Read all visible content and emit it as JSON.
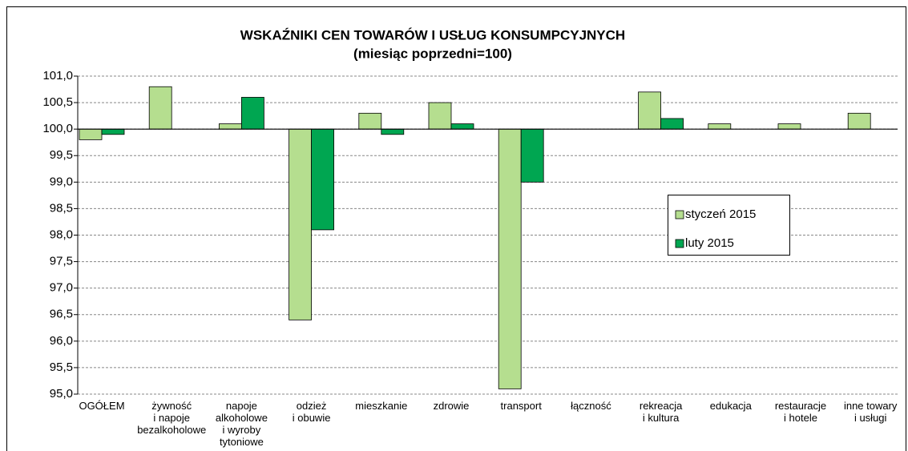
{
  "chart_data": {
    "type": "bar",
    "title": "WSKAŹNIKI CEN TOWARÓW I USŁUG KONSUMPCYJNYCH",
    "subtitle": "(miesiąc poprzedni=100)",
    "categories": [
      "OGÓŁEM",
      "żywność\ni napoje\nbezalkoholowe",
      "napoje\nalkoholowe\ni wyroby\ntytoniowe",
      "odzież\ni obuwie",
      "mieszkanie",
      "zdrowie",
      "transport",
      "łączność",
      "rekreacja\ni kultura",
      "edukacja",
      "restauracje\ni hotele",
      "inne towary\ni usługi"
    ],
    "series": [
      {
        "name": "styczeń 2015",
        "color": "#b5de8f",
        "values": [
          99.8,
          100.8,
          100.1,
          96.4,
          100.3,
          100.5,
          95.1,
          100.0,
          100.7,
          100.1,
          100.1,
          100.3
        ]
      },
      {
        "name": "luty 2015",
        "color": "#00a651",
        "values": [
          99.9,
          100.0,
          100.6,
          98.1,
          99.9,
          100.1,
          99.0,
          100.0,
          100.2,
          100.0,
          100.0,
          100.0
        ]
      }
    ],
    "ylim": [
      95,
      101
    ],
    "yticks": [
      {
        "value": 95,
        "label": "95,0"
      },
      {
        "value": 95.5,
        "label": "95,5"
      },
      {
        "value": 96,
        "label": "96,0"
      },
      {
        "value": 96.5,
        "label": "96,5"
      },
      {
        "value": 97,
        "label": "97,0"
      },
      {
        "value": 97.5,
        "label": "97,5"
      },
      {
        "value": 98,
        "label": "98,0"
      },
      {
        "value": 98.5,
        "label": "98,5"
      },
      {
        "value": 99,
        "label": "99,0"
      },
      {
        "value": 99.5,
        "label": "99,5"
      },
      {
        "value": 100,
        "label": "100,0"
      },
      {
        "value": 100.5,
        "label": "100,5"
      },
      {
        "value": 101,
        "label": "101,0"
      }
    ],
    "axis_crosses_at": 100,
    "grid": true,
    "legend": "right"
  }
}
